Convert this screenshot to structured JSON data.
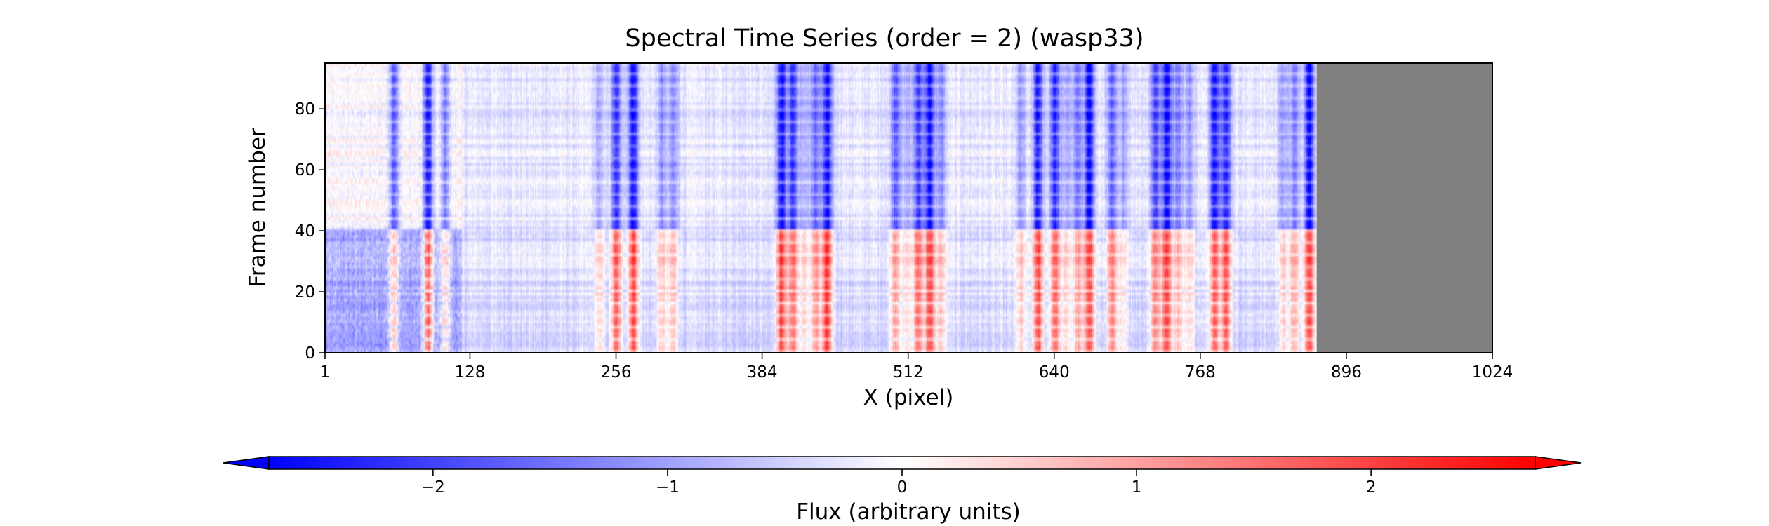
{
  "chart_data": {
    "type": "heatmap",
    "title": "Spectral Time Series (order = 2) (wasp33)",
    "xlabel": "X (pixel)",
    "ylabel": "Frame number",
    "xlim": [
      1,
      1024
    ],
    "ylim": [
      0,
      95
    ],
    "x_ticks": [
      1,
      128,
      256,
      384,
      512,
      640,
      768,
      896,
      1024
    ],
    "y_ticks": [
      0,
      20,
      40,
      60,
      80
    ],
    "masked_region_x": [
      870,
      1024
    ],
    "masked_color": "#808080",
    "transition_frame": 41,
    "data_note": "blue absorption-line columns in frames 41–95 turn red in frames 0–40",
    "strong_features_x": [
      60,
      90,
      105,
      240,
      255,
      270,
      295,
      305,
      400,
      410,
      420,
      430,
      440,
      500,
      510,
      520,
      530,
      540,
      610,
      625,
      640,
      650,
      660,
      670,
      690,
      700,
      728,
      738,
      748,
      758,
      780,
      790,
      840,
      850,
      863
    ],
    "colorbar": {
      "label": "Flux (arbitrary units)",
      "range": [
        -2.7,
        2.7
      ],
      "ticks": [
        -2,
        -1,
        0,
        1,
        2
      ],
      "tick_labels": [
        "−2",
        "−1",
        "0",
        "1",
        "2"
      ],
      "colormap": "bwr",
      "extend": "both",
      "low_color": "#0000ff",
      "mid_color": "#ffffff",
      "high_color": "#ff0000"
    }
  }
}
